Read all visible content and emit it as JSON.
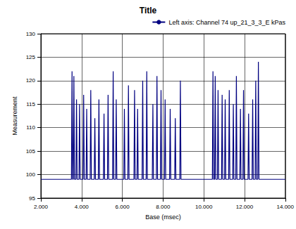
{
  "chart_data": {
    "type": "line",
    "title": "Title",
    "x_label": "Base (msec)",
    "y_label": "Measurement",
    "xlim": [
      2000,
      14000
    ],
    "xticks": [
      {
        "value": 2000,
        "label": "2.000"
      },
      {
        "value": 4000,
        "label": "4.000"
      },
      {
        "value": 6000,
        "label": "6.000"
      },
      {
        "value": 8000,
        "label": "8.000"
      },
      {
        "value": 10000,
        "label": "10.000"
      },
      {
        "value": 12000,
        "label": "12.000"
      },
      {
        "value": 14000,
        "label": "14.000"
      }
    ],
    "ylim": [
      95,
      130
    ],
    "yticks": [
      95,
      100,
      105,
      110,
      115,
      120,
      125,
      130
    ],
    "grid": true,
    "legend": "top-right",
    "x": [
      2000,
      3500,
      3530,
      3560,
      3590,
      3620,
      3650,
      3720,
      3750,
      3780,
      3870,
      3900,
      3930,
      4070,
      4100,
      4130,
      4220,
      4250,
      4280,
      4420,
      4450,
      4480,
      4620,
      4650,
      4680,
      4820,
      4850,
      4880,
      5070,
      5100,
      5130,
      5270,
      5300,
      5330,
      5520,
      5550,
      5580,
      5670,
      5700,
      5730,
      6070,
      6100,
      6130,
      6270,
      6300,
      6330,
      6570,
      6600,
      6630,
      6720,
      6750,
      6780,
      6970,
      7000,
      7030,
      7170,
      7200,
      7230,
      7470,
      7500,
      7530,
      7670,
      7700,
      7730,
      7870,
      7900,
      7930,
      8070,
      8100,
      8130,
      8320,
      8350,
      8380,
      8570,
      8600,
      8630,
      8820,
      8850,
      8880,
      10420,
      10450,
      10480,
      10530,
      10560,
      10590,
      10670,
      10700,
      10730,
      10870,
      10900,
      10930,
      11020,
      11050,
      11080,
      11220,
      11250,
      11280,
      11420,
      11450,
      11480,
      11570,
      11600,
      11630,
      11770,
      11800,
      11830,
      11920,
      11950,
      11980,
      12170,
      12200,
      12230,
      12370,
      12400,
      12430,
      12520,
      12550,
      12580,
      12650,
      12680,
      12710,
      14000
    ],
    "series": [
      {
        "name": "Left axis: Channel 74 up_21_3_3_E kPas",
        "color": "#000080",
        "marker": "none",
        "line_style": "solid",
        "values": [
          99,
          99,
          122,
          99,
          99,
          121,
          99,
          99,
          116,
          99,
          99,
          115,
          99,
          99,
          117,
          99,
          99,
          114,
          99,
          99,
          118,
          99,
          99,
          112,
          99,
          99,
          116,
          99,
          99,
          113,
          99,
          99,
          117,
          99,
          99,
          122,
          99,
          99,
          116,
          99,
          99,
          114,
          99,
          99,
          119,
          99,
          99,
          118,
          99,
          99,
          114,
          99,
          99,
          120,
          99,
          99,
          122,
          99,
          99,
          115,
          99,
          99,
          121,
          99,
          99,
          118,
          99,
          99,
          116,
          99,
          99,
          114,
          99,
          99,
          112,
          99,
          99,
          120,
          99,
          99,
          122,
          99,
          99,
          121,
          99,
          99,
          118,
          99,
          99,
          117,
          99,
          99,
          116,
          99,
          99,
          118,
          99,
          99,
          115,
          99,
          99,
          121,
          99,
          99,
          114,
          99,
          99,
          118,
          99,
          99,
          113,
          99,
          99,
          116,
          99,
          99,
          120,
          99,
          99,
          124,
          99,
          99
        ]
      }
    ]
  }
}
